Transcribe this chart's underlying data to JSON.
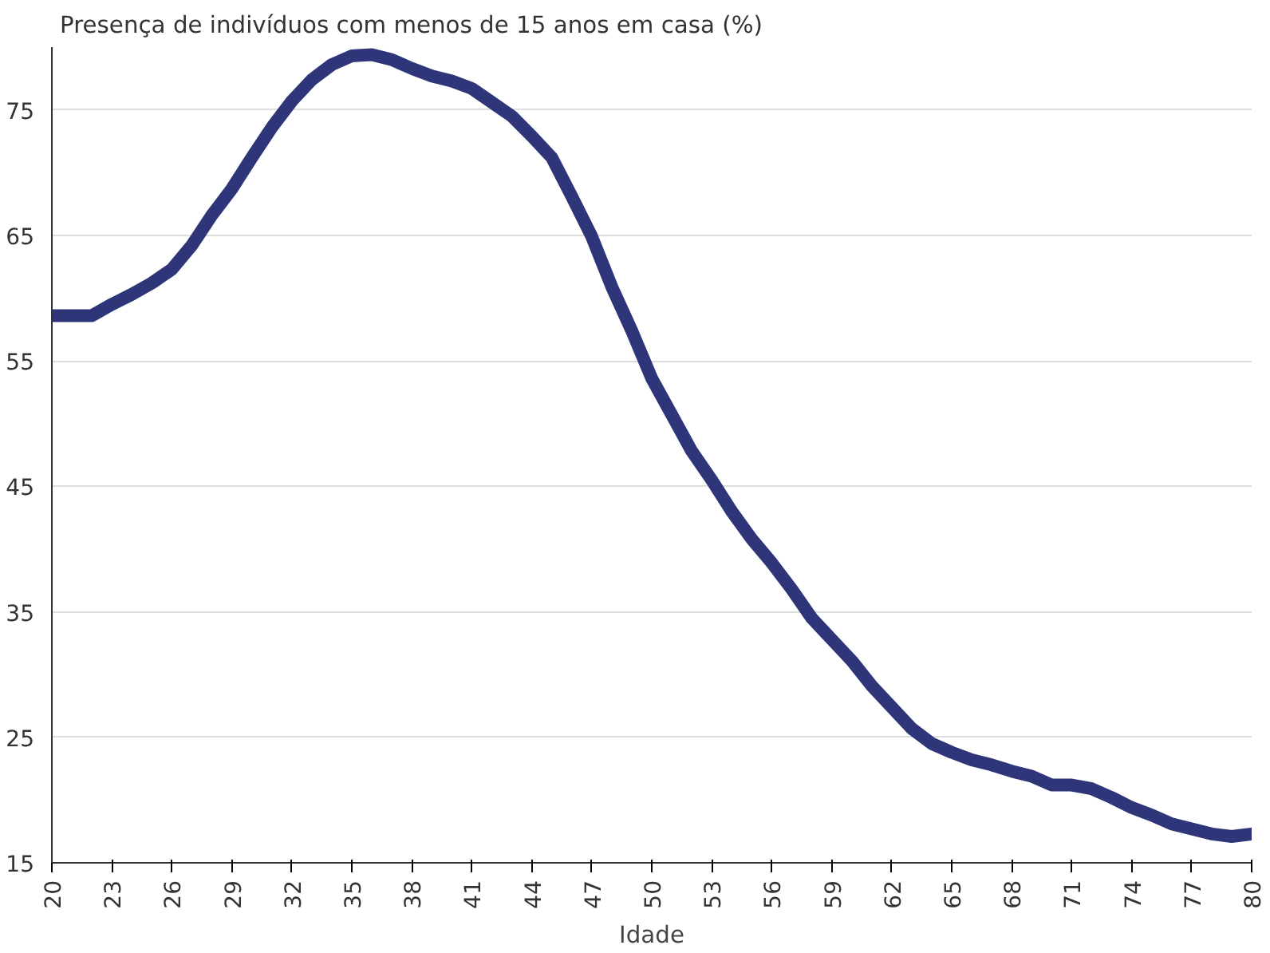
{
  "chart_data": {
    "type": "line",
    "title": "Presença de indivíduos com menos de 15 anos em casa (%)",
    "xlabel": "Idade",
    "x": [
      20,
      21,
      22,
      23,
      24,
      25,
      26,
      27,
      28,
      29,
      30,
      31,
      32,
      33,
      34,
      35,
      36,
      37,
      38,
      39,
      40,
      41,
      42,
      43,
      44,
      45,
      46,
      47,
      48,
      49,
      50,
      51,
      52,
      53,
      54,
      55,
      56,
      57,
      58,
      59,
      60,
      61,
      62,
      63,
      64,
      65,
      66,
      67,
      68,
      69,
      70,
      71,
      72,
      73,
      74,
      75,
      76,
      77,
      78,
      79,
      80
    ],
    "series": [
      {
        "color": "#2e3578",
        "values": [
          58.6,
          58.6,
          58.6,
          59.5,
          60.3,
          61.2,
          62.3,
          64.2,
          66.6,
          68.7,
          71.2,
          73.6,
          75.7,
          77.4,
          78.6,
          79.3,
          79.4,
          79.0,
          78.3,
          77.7,
          77.3,
          76.7,
          75.6,
          74.5,
          72.9,
          71.2,
          68.1,
          64.9,
          60.9,
          57.4,
          53.6,
          50.7,
          47.8,
          45.5,
          43.0,
          40.8,
          38.9,
          36.8,
          34.5,
          32.8,
          31.1,
          29.1,
          27.4,
          25.7,
          24.5,
          23.8,
          23.2,
          22.8,
          22.3,
          21.9,
          21.2,
          21.2,
          20.9,
          20.2,
          19.4,
          18.8,
          18.1,
          17.7,
          17.3,
          17.1,
          17.3
        ]
      }
    ],
    "xlim": [
      20,
      80
    ],
    "ylim": [
      15,
      80
    ],
    "xticks": [
      20,
      23,
      26,
      29,
      32,
      35,
      38,
      41,
      44,
      47,
      50,
      53,
      56,
      59,
      62,
      65,
      68,
      71,
      74,
      77,
      80
    ],
    "yticks": [
      15,
      25,
      35,
      45,
      55,
      65,
      75
    ],
    "grid": "y",
    "marker": "none",
    "line_style": "solid"
  }
}
